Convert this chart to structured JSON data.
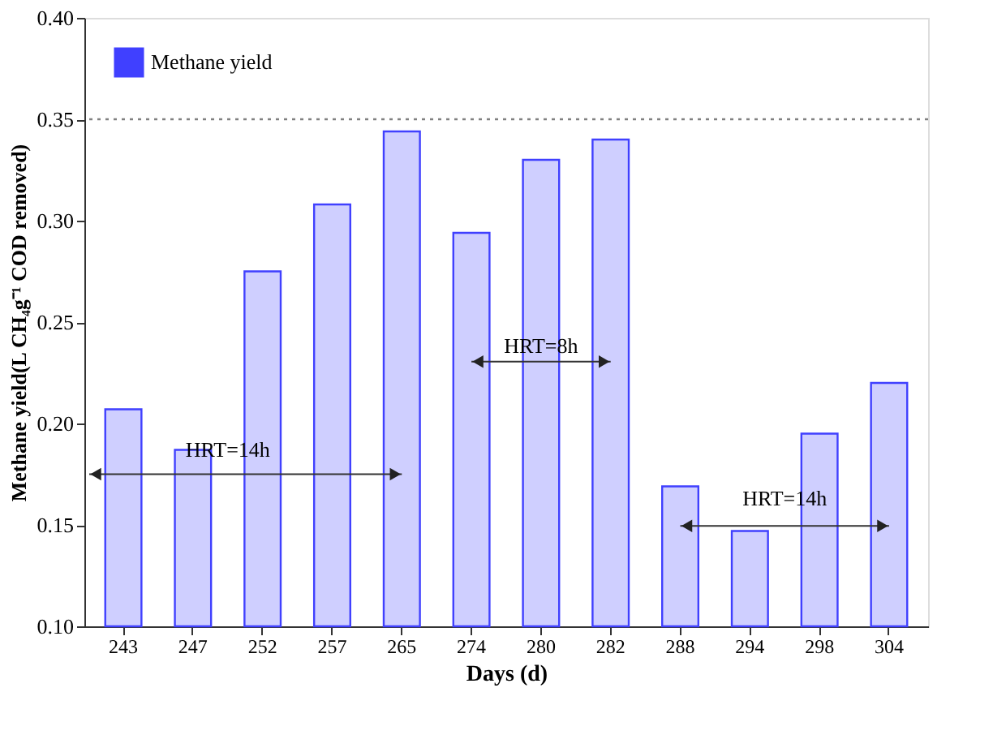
{
  "chart_data": {
    "type": "bar",
    "xlabel": "Days (d)",
    "ylabel": "Methane yield(L CH₄g⁻¹ COD removed)",
    "categories": [
      "243",
      "247",
      "252",
      "257",
      "265",
      "274",
      "280",
      "282",
      "288",
      "294",
      "298",
      "304"
    ],
    "series": [
      {
        "name": "Methane yield",
        "color": "#4040ff",
        "values": [
          0.207,
          0.187,
          0.275,
          0.308,
          0.344,
          0.294,
          0.33,
          0.34,
          0.169,
          0.147,
          0.195,
          0.22
        ]
      }
    ],
    "ylim": [
      0.1,
      0.4
    ],
    "yticks": [
      {
        "value": 0.1,
        "label": "0.10"
      },
      {
        "value": 0.15,
        "label": "0.15"
      },
      {
        "value": 0.2,
        "label": "0.20"
      },
      {
        "value": 0.25,
        "label": "0.25"
      },
      {
        "value": 0.3,
        "label": "0.30"
      },
      {
        "value": 0.35,
        "label": "0.35"
      },
      {
        "value": 0.4,
        "label": "0.40"
      }
    ],
    "ref_lines": [
      {
        "axis": "y",
        "value": 0.35,
        "color": "#808080",
        "line_style": "dotted"
      }
    ],
    "annotations": [
      "HRT=14h",
      "HRT=8h",
      "HRT=14h"
    ],
    "legend": "top left",
    "grid": false
  }
}
